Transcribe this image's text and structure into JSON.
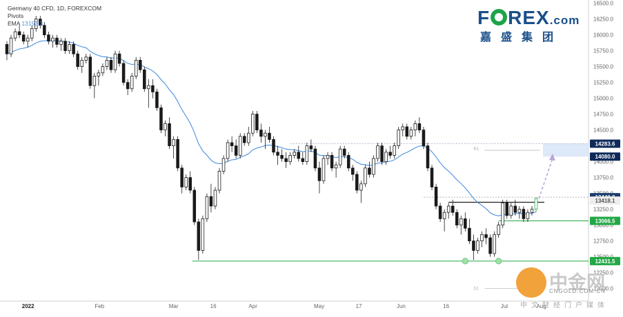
{
  "legend": {
    "line1": "Germany 40 CFD, 1D, FOREXCOM",
    "line2": "Pivots",
    "line3_label": "EMA",
    "line3_value": "13153.3"
  },
  "logo": {
    "main_pre": "F",
    "main_post": "REX",
    "main_suffix": ".com",
    "sub": "嘉盛集团"
  },
  "watermark": {
    "text": "中金网",
    "url": "CNGOLD.COM.CN",
    "cn": "中文财经门户媒体"
  },
  "colors": {
    "ema": "#4a90e2",
    "support": "#22a845",
    "resistance": "#1e1e1e",
    "target_zone": "#dde8f8",
    "target_label": "#0d2a5a",
    "current_price_label": "#1a3d6e"
  },
  "chart_data": {
    "type": "candlestick",
    "instrument": "Germany 40 CFD",
    "timeframe": "1D",
    "y_axis": {
      "range": [
        11800,
        16600
      ],
      "ticks": [
        "16500.0",
        "16250.0",
        "16000.0",
        "15750.0",
        "15500.0",
        "15250.0",
        "15000.0",
        "14750.0",
        "14500.0",
        "14250.0",
        "14000.0",
        "13750.0",
        "13500.0",
        "13250.0",
        "13000.0",
        "12750.0",
        "12500.0",
        "12250.0",
        "12000.0"
      ]
    },
    "x_axis": {
      "ticks": [
        "2022",
        "Feb",
        "Mar",
        "16",
        "Apr",
        "May",
        "17",
        "Jun",
        "16",
        "Jul",
        "Aug"
      ]
    },
    "price_labels": [
      {
        "text": "14283.6",
        "value": 14283.6,
        "role": "target-high"
      },
      {
        "text": "14080.0",
        "value": 14080.0,
        "role": "target-low"
      },
      {
        "text": "13440.0",
        "value": 13440.0,
        "role": "recent-high"
      },
      {
        "text": "13418.1",
        "value": 13418.1,
        "role": "current"
      },
      {
        "text": "13066.5",
        "value": 13066.5,
        "role": "support"
      },
      {
        "text": "12431.5",
        "value": 12431.5,
        "role": "major-support"
      }
    ],
    "levels": {
      "resistance": 13360,
      "support": 13066.5,
      "major_support": 12431.5,
      "target_zone": [
        14080.0,
        14283.6
      ],
      "pivot_r1": 14080,
      "pivot_s1": 12000
    },
    "pivot_labels": {
      "r1": "R1",
      "s1": "S1"
    },
    "candles": [
      [
        15850,
        15900,
        15600,
        15700
      ],
      [
        15700,
        16000,
        15650,
        15950
      ],
      [
        15950,
        16100,
        15900,
        16050
      ],
      [
        16050,
        16150,
        15950,
        16000
      ],
      [
        16000,
        16050,
        15850,
        15900
      ],
      [
        15900,
        16000,
        15800,
        15950
      ],
      [
        15950,
        16150,
        15900,
        16100
      ],
      [
        16100,
        16300,
        16050,
        16250
      ],
      [
        16250,
        16300,
        16100,
        16150
      ],
      [
        16150,
        16200,
        15950,
        16000
      ],
      [
        16000,
        16050,
        15850,
        15900
      ],
      [
        15900,
        16000,
        15800,
        15950
      ],
      [
        15950,
        16000,
        15800,
        15850
      ],
      [
        15850,
        15950,
        15750,
        15900
      ],
      [
        15900,
        15950,
        15700,
        15750
      ],
      [
        15750,
        15900,
        15700,
        15850
      ],
      [
        15850,
        15900,
        15650,
        15700
      ],
      [
        15700,
        15750,
        15450,
        15500
      ],
      [
        15500,
        15650,
        15400,
        15600
      ],
      [
        15600,
        15700,
        15550,
        15650
      ],
      [
        15650,
        15700,
        15150,
        15200
      ],
      [
        15200,
        15400,
        15000,
        15350
      ],
      [
        15350,
        15450,
        15200,
        15400
      ],
      [
        15400,
        15550,
        15350,
        15500
      ],
      [
        15500,
        15650,
        15450,
        15600
      ],
      [
        15600,
        15650,
        15400,
        15450
      ],
      [
        15450,
        15750,
        15400,
        15700
      ],
      [
        15700,
        15750,
        15500,
        15550
      ],
      [
        15550,
        15600,
        15200,
        15250
      ],
      [
        15250,
        15300,
        15050,
        15150
      ],
      [
        15150,
        15400,
        15100,
        15350
      ],
      [
        15350,
        15650,
        15300,
        15600
      ],
      [
        15600,
        15650,
        15400,
        15450
      ],
      [
        15450,
        15500,
        15100,
        15150
      ],
      [
        15150,
        15300,
        14850,
        15200
      ],
      [
        15200,
        15300,
        15000,
        15100
      ],
      [
        15100,
        15150,
        14800,
        14850
      ],
      [
        14850,
        14900,
        14450,
        14500
      ],
      [
        14500,
        14650,
        14400,
        14600
      ],
      [
        14600,
        14700,
        14200,
        14250
      ],
      [
        14250,
        14400,
        14050,
        14350
      ],
      [
        14350,
        14400,
        13850,
        13900
      ],
      [
        13900,
        13950,
        13500,
        13600
      ],
      [
        13600,
        13800,
        13550,
        13750
      ],
      [
        13750,
        13850,
        13500,
        13550
      ],
      [
        13550,
        13600,
        13000,
        13050
      ],
      [
        13050,
        13100,
        12450,
        12600
      ],
      [
        12600,
        13150,
        12550,
        13100
      ],
      [
        13100,
        13500,
        13050,
        13450
      ],
      [
        13450,
        13650,
        13200,
        13300
      ],
      [
        13300,
        13600,
        13250,
        13550
      ],
      [
        13550,
        13900,
        13500,
        13850
      ],
      [
        13850,
        14100,
        13800,
        14050
      ],
      [
        14050,
        14350,
        14000,
        14300
      ],
      [
        14300,
        14400,
        14150,
        14250
      ],
      [
        14250,
        14350,
        14050,
        14100
      ],
      [
        14100,
        14450,
        14050,
        14400
      ],
      [
        14400,
        14450,
        14250,
        14300
      ],
      [
        14300,
        14550,
        14250,
        14450
      ],
      [
        14450,
        14800,
        14400,
        14750
      ],
      [
        14750,
        14800,
        14450,
        14500
      ],
      [
        14500,
        14600,
        14300,
        14400
      ],
      [
        14400,
        14500,
        14200,
        14450
      ],
      [
        14450,
        14550,
        14300,
        14350
      ],
      [
        14350,
        14400,
        14100,
        14150
      ],
      [
        14150,
        14250,
        13950,
        14100
      ],
      [
        14100,
        14200,
        14000,
        14050
      ],
      [
        14050,
        14150,
        13900,
        14000
      ],
      [
        14000,
        14150,
        13950,
        14100
      ],
      [
        14100,
        14200,
        14050,
        14150
      ],
      [
        14150,
        14250,
        14000,
        14050
      ],
      [
        14050,
        14150,
        13950,
        14000
      ],
      [
        14000,
        14300,
        13950,
        14250
      ],
      [
        14250,
        14350,
        14150,
        14200
      ],
      [
        14200,
        14250,
        13850,
        13900
      ],
      [
        13900,
        14000,
        13500,
        13700
      ],
      [
        13700,
        14100,
        13650,
        14050
      ],
      [
        14050,
        14150,
        13950,
        14100
      ],
      [
        14100,
        14150,
        13850,
        13900
      ],
      [
        13900,
        14000,
        13750,
        13950
      ],
      [
        13950,
        14250,
        13900,
        14200
      ],
      [
        14200,
        14250,
        14050,
        14100
      ],
      [
        14100,
        14150,
        13850,
        13900
      ],
      [
        13900,
        13950,
        13700,
        13800
      ],
      [
        13800,
        13850,
        13500,
        13550
      ],
      [
        13550,
        13700,
        13350,
        13650
      ],
      [
        13650,
        13950,
        13600,
        13900
      ],
      [
        13900,
        14000,
        13750,
        13800
      ],
      [
        13800,
        14100,
        13750,
        14050
      ],
      [
        14050,
        14300,
        14000,
        14250
      ],
      [
        14250,
        14300,
        13950,
        14000
      ],
      [
        14000,
        14200,
        13950,
        14150
      ],
      [
        14150,
        14250,
        14050,
        14100
      ],
      [
        14100,
        14300,
        14050,
        14250
      ],
      [
        14250,
        14550,
        14200,
        14500
      ],
      [
        14500,
        14600,
        14400,
        14550
      ],
      [
        14550,
        14600,
        14350,
        14400
      ],
      [
        14400,
        14550,
        14350,
        14500
      ],
      [
        14500,
        14650,
        14400,
        14600
      ],
      [
        14600,
        14700,
        14450,
        14500
      ],
      [
        14500,
        14550,
        14200,
        14250
      ],
      [
        14250,
        14300,
        13850,
        13900
      ],
      [
        13900,
        13950,
        13550,
        13600
      ],
      [
        13600,
        13650,
        13250,
        13300
      ],
      [
        13300,
        13350,
        13050,
        13100
      ],
      [
        13100,
        13250,
        12900,
        13200
      ],
      [
        13200,
        13350,
        13100,
        13300
      ],
      [
        13300,
        13400,
        13150,
        13200
      ],
      [
        13200,
        13250,
        12950,
        13000
      ],
      [
        13000,
        13150,
        12850,
        13100
      ],
      [
        13100,
        13200,
        12900,
        12950
      ],
      [
        12950,
        13100,
        12700,
        12750
      ],
      [
        12750,
        12850,
        12450,
        12600
      ],
      [
        12600,
        12800,
        12550,
        12750
      ],
      [
        12750,
        12900,
        12650,
        12850
      ],
      [
        12850,
        12950,
        12700,
        12800
      ],
      [
        12800,
        12850,
        12500,
        12550
      ],
      [
        12550,
        12900,
        12500,
        12850
      ],
      [
        12850,
        13050,
        12800,
        13000
      ],
      [
        13000,
        13400,
        12950,
        13350
      ],
      [
        13350,
        13400,
        13100,
        13150
      ],
      [
        13150,
        13350,
        13100,
        13300
      ],
      [
        13300,
        13400,
        13150,
        13200
      ],
      [
        13200,
        13300,
        13100,
        13250
      ],
      [
        13250,
        13300,
        13050,
        13100
      ],
      [
        13100,
        13250,
        13050,
        13200
      ],
      [
        13200,
        13300,
        13150,
        13250
      ],
      [
        13250,
        13440,
        13200,
        13418
      ]
    ]
  }
}
